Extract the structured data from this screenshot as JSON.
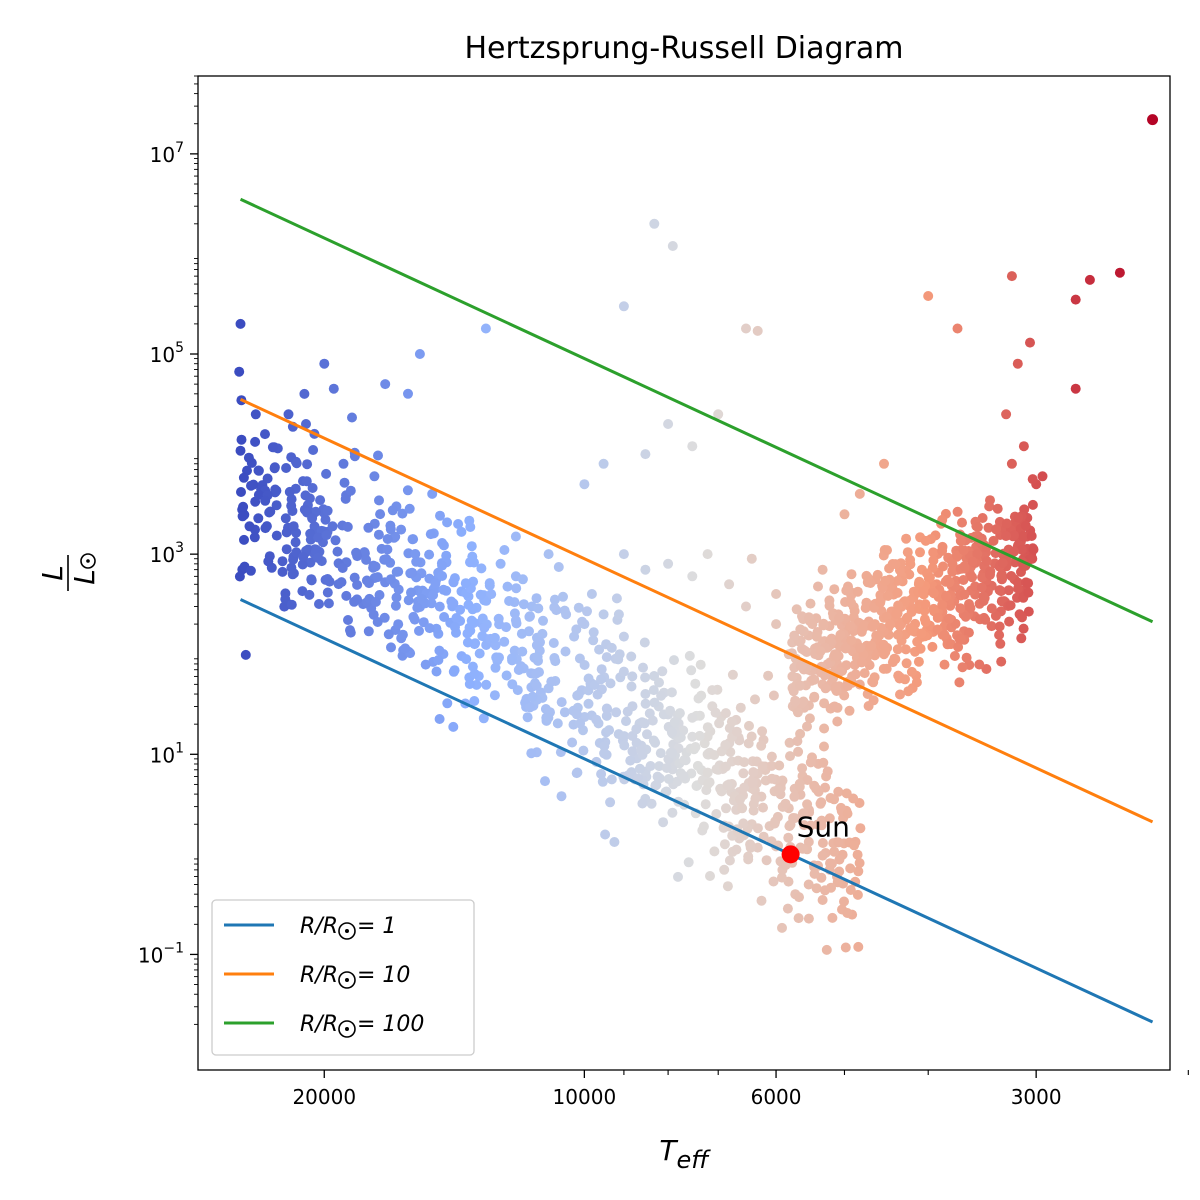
{
  "chart_data": {
    "type": "scatter",
    "title": "Hertzsprung-Russell Diagram",
    "xlabel": "T_eff",
    "ylabel": "L / L⊙",
    "xscale": "log",
    "yscale": "log",
    "x_reversed": true,
    "xlim": [
      28000,
      2100
    ],
    "ylim": [
      0.007,
      60000000
    ],
    "xticks": [
      {
        "value": 20000,
        "label": "20000"
      },
      {
        "value": 10000,
        "label": "10000"
      },
      {
        "value": 6000,
        "label": "6000"
      },
      {
        "value": 3000,
        "label": "3000"
      }
    ],
    "x_minor_ticks": [
      9000,
      8000,
      7000,
      5000,
      4000,
      2000
    ],
    "yticks": [
      {
        "value": 0.1,
        "base": "10",
        "exp": "−1"
      },
      {
        "value": 10,
        "base": "10",
        "exp": "1"
      },
      {
        "value": 1000,
        "base": "10",
        "exp": "3"
      },
      {
        "value": 100000,
        "base": "10",
        "exp": "5"
      },
      {
        "value": 10000000,
        "base": "10",
        "exp": "7"
      }
    ],
    "grid": false,
    "legend_position": "lower-left",
    "colormap": "coolwarm",
    "series": [
      {
        "name": "R/R⊙ = 1",
        "radius": 1,
        "color": "#1f77b4",
        "x": [
          25000,
          2200
        ]
      },
      {
        "name": "R/R⊙ = 10",
        "radius": 10,
        "color": "#ff7f0e",
        "x": [
          25000,
          2200
        ]
      },
      {
        "name": "R/R⊙ = 100",
        "radius": 100,
        "color": "#2ca02c",
        "x": [
          25000,
          2200
        ]
      }
    ],
    "legend": {
      "entries": [
        {
          "prefix": "R/R",
          "suffix": " = 1",
          "color": "#1f77b4"
        },
        {
          "prefix": "R/R",
          "suffix": " = 10",
          "color": "#ff7f0e"
        },
        {
          "prefix": "R/R",
          "suffix": " = 100",
          "color": "#2ca02c"
        }
      ]
    },
    "sun": {
      "teff": 5772,
      "lum": 1,
      "label": "Sun",
      "color": "#ff0000"
    },
    "stars_sampled": [
      [
        25000,
        200000
      ],
      [
        24000,
        25000
      ],
      [
        22000,
        25000
      ],
      [
        21000,
        20000
      ],
      [
        20000,
        80000
      ],
      [
        19500,
        45000
      ],
      [
        17000,
        50000
      ],
      [
        16000,
        40000
      ],
      [
        15500,
        100000
      ],
      [
        13000,
        180000
      ],
      [
        19000,
        8000
      ],
      [
        17500,
        6000
      ],
      [
        16500,
        3000
      ],
      [
        15000,
        4000
      ],
      [
        14000,
        2000
      ],
      [
        13500,
        1200
      ],
      [
        12500,
        800
      ],
      [
        12000,
        1500
      ],
      [
        11000,
        1000
      ],
      [
        12000,
        600
      ],
      [
        11500,
        300
      ],
      [
        10500,
        250
      ],
      [
        10000,
        200
      ],
      [
        9800,
        400
      ],
      [
        9500,
        250
      ],
      [
        9000,
        150
      ],
      [
        9200,
        90
      ],
      [
        8800,
        60
      ],
      [
        8500,
        40
      ],
      [
        8200,
        30
      ],
      [
        8000,
        25
      ],
      [
        7800,
        20
      ],
      [
        7500,
        15
      ],
      [
        7200,
        10
      ],
      [
        7000,
        7
      ],
      [
        6800,
        5
      ],
      [
        6600,
        3
      ],
      [
        6400,
        2
      ],
      [
        6200,
        1.5
      ],
      [
        6000,
        1.2
      ],
      [
        5900,
        0.7
      ],
      [
        5700,
        0.4
      ],
      [
        5500,
        0.5
      ],
      [
        5300,
        0.35
      ],
      [
        5100,
        0.6
      ],
      [
        4900,
        0.25
      ],
      [
        8500,
        10000
      ],
      [
        8000,
        20000
      ],
      [
        7500,
        12000
      ],
      [
        7000,
        25000
      ],
      [
        6500,
        180000
      ],
      [
        6300,
        170000
      ],
      [
        8300,
        2000000
      ],
      [
        7900,
        1200000
      ],
      [
        9000,
        300000
      ],
      [
        10000,
        5000
      ],
      [
        9500,
        8000
      ],
      [
        9000,
        1000
      ],
      [
        8500,
        700
      ],
      [
        8000,
        800
      ],
      [
        7500,
        600
      ],
      [
        7200,
        1000
      ],
      [
        6800,
        500
      ],
      [
        6500,
        300
      ],
      [
        6000,
        200
      ],
      [
        5800,
        100
      ],
      [
        5500,
        70
      ],
      [
        5300,
        50
      ],
      [
        5100,
        80
      ],
      [
        4900,
        60
      ],
      [
        4700,
        40
      ],
      [
        4500,
        100
      ],
      [
        4300,
        200
      ],
      [
        4200,
        300
      ],
      [
        4100,
        500
      ],
      [
        3900,
        1000
      ],
      [
        3700,
        700
      ],
      [
        3500,
        1500
      ],
      [
        3400,
        3000
      ],
      [
        3300,
        2000
      ],
      [
        3200,
        8000
      ],
      [
        3100,
        12000
      ],
      [
        3000,
        5000
      ],
      [
        3250,
        25000
      ],
      [
        3150,
        80000
      ],
      [
        3050,
        130000
      ],
      [
        2950,
        6000
      ],
      [
        2700,
        350000
      ],
      [
        2600,
        550000
      ],
      [
        2400,
        650000
      ],
      [
        4000,
        380000
      ],
      [
        3700,
        180000
      ],
      [
        3200,
        600000
      ],
      [
        2700,
        45000
      ],
      [
        4500,
        8000
      ],
      [
        4800,
        4000
      ],
      [
        5000,
        2500
      ],
      [
        5300,
        700
      ],
      [
        6000,
        400
      ],
      [
        6400,
        900
      ]
    ],
    "extreme_star": {
      "teff": 2200,
      "lum": 22000000
    }
  }
}
